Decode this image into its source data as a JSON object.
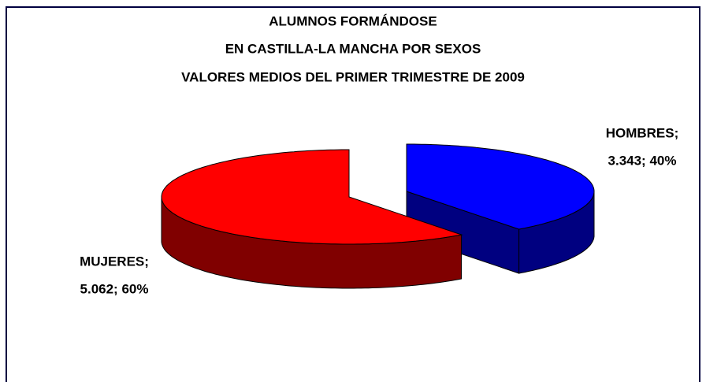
{
  "chart_data": {
    "type": "pie",
    "title": [
      "ALUMNOS FORMÁNDOSE",
      "EN CASTILLA-LA MANCHA POR SEXOS",
      "VALORES MEDIOS DEL PRIMER TRIMESTRE DE 2009"
    ],
    "categories": [
      "HOMBRES",
      "MUJERES"
    ],
    "values": [
      3343,
      5062
    ],
    "value_labels": [
      [
        "HOMBRES;",
        "3.343; 40%"
      ],
      [
        "MUJERES;",
        "5.062; 60%"
      ]
    ],
    "colors": [
      "#0000ff",
      "#ff0000"
    ],
    "side_colors": [
      "#000080",
      "#800000"
    ],
    "three_d": true,
    "exploded": true
  }
}
